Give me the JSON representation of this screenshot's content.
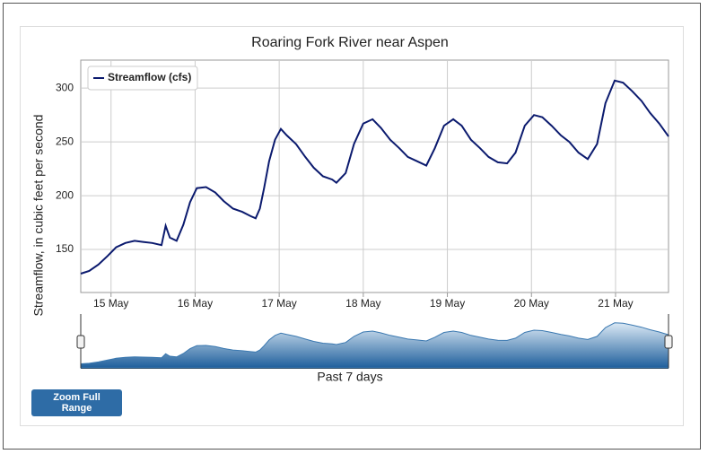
{
  "chart_data": {
    "type": "line",
    "title": "Roaring Fork River near Aspen",
    "y_label": "Streamflow, in cubic feet per second",
    "x": [
      14.64,
      14.74,
      14.85,
      14.96,
      15.06,
      15.17,
      15.28,
      15.38,
      15.49,
      15.6,
      15.65,
      15.7,
      15.78,
      15.86,
      15.94,
      16.02,
      16.13,
      16.24,
      16.34,
      16.45,
      16.56,
      16.66,
      16.72,
      16.77,
      16.82,
      16.88,
      16.95,
      17.02,
      17.09,
      17.2,
      17.31,
      17.41,
      17.52,
      17.63,
      17.68,
      17.79,
      17.89,
      18.0,
      18.11,
      18.21,
      18.32,
      18.43,
      18.53,
      18.64,
      18.75,
      18.85,
      18.96,
      19.07,
      19.17,
      19.28,
      19.39,
      19.49,
      19.6,
      19.71,
      19.81,
      19.92,
      20.03,
      20.13,
      20.24,
      20.35,
      20.45,
      20.56,
      20.67,
      20.78,
      20.88,
      20.99,
      21.09,
      21.2,
      21.31,
      21.41,
      21.52,
      21.63
    ],
    "series": [
      {
        "name": "Streamflow (cfs)",
        "color": "#0b1a6e",
        "values": [
          127.5,
          130,
          136,
          144,
          152,
          156,
          158,
          157,
          156,
          154,
          172,
          161,
          158,
          173,
          194,
          207,
          208,
          203,
          195,
          188,
          185,
          181,
          179,
          188,
          207,
          232,
          252,
          262,
          256,
          248,
          236,
          226,
          218,
          215,
          212,
          221,
          248,
          267,
          271,
          263,
          252,
          244,
          236,
          232,
          228,
          244,
          265,
          271,
          265,
          252,
          244,
          236,
          231,
          230,
          240,
          265,
          275,
          273,
          265,
          256,
          250,
          240,
          234,
          248,
          286,
          307,
          305,
          297,
          288,
          277,
          267,
          255
        ]
      }
    ],
    "xlim": [
      14.64,
      21.63
    ],
    "ylim": [
      110,
      326
    ],
    "xticks": [
      {
        "value": 15,
        "label": "15 May"
      },
      {
        "value": 16,
        "label": "16 May"
      },
      {
        "value": 17,
        "label": "17 May"
      },
      {
        "value": 18,
        "label": "18 May"
      },
      {
        "value": 19,
        "label": "19 May"
      },
      {
        "value": 20,
        "label": "20 May"
      },
      {
        "value": 21,
        "label": "21 May"
      }
    ],
    "yticks": [
      150,
      200,
      250,
      300
    ],
    "grid": true,
    "legend": "top-left",
    "navigator_label": "Past 7 days"
  },
  "button": "Zoom Full Range"
}
